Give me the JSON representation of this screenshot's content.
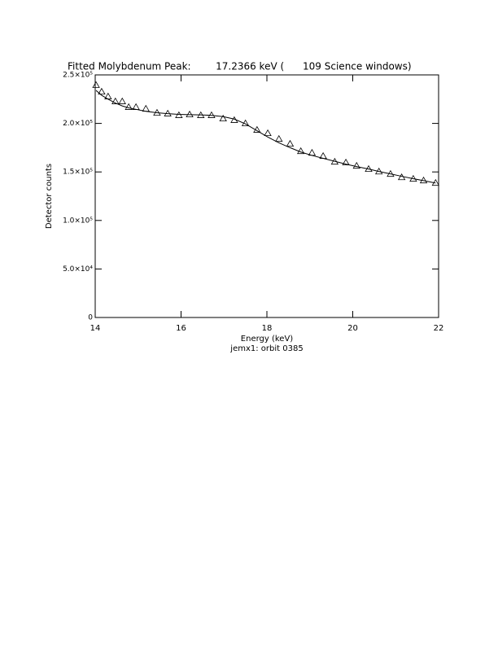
{
  "chart_data": {
    "type": "scatter",
    "title": "Fitted Molybdenum Peak:        17.2366 keV (      109 Science windows)",
    "xlabel": "Energy (keV)",
    "subtitle": "jemx1: orbit 0385",
    "ylabel": "Detector counts",
    "xlim": [
      14,
      22
    ],
    "xticks": [
      14,
      16,
      18,
      20,
      22
    ],
    "ylim": [
      0,
      250000
    ],
    "yticks": [
      0,
      {
        "value": 50000,
        "label": "5.0×10⁴"
      },
      {
        "value": 100000,
        "label": "1.0×10⁵"
      },
      {
        "value": 150000,
        "label": "1.5×10⁵"
      },
      {
        "value": 200000,
        "label": "2.0×10⁵"
      },
      {
        "value": 250000,
        "label": "2.5×10⁵"
      }
    ],
    "grid": false,
    "x": [
      14.02,
      14.15,
      14.3,
      14.47,
      14.63,
      14.78,
      14.95,
      15.18,
      15.44,
      15.69,
      15.95,
      16.2,
      16.46,
      16.71,
      16.98,
      17.24,
      17.5,
      17.77,
      18.02,
      18.28,
      18.54,
      18.79,
      19.05,
      19.31,
      19.58,
      19.84,
      20.09,
      20.37,
      20.61,
      20.88,
      21.14,
      21.41,
      21.65,
      21.93
    ],
    "series": [
      {
        "style": "triangle",
        "color": "#000000",
        "values": [
          239500,
          232700,
          227700,
          222700,
          222700,
          216800,
          216800,
          215100,
          210900,
          210100,
          208400,
          209200,
          208400,
          208400,
          205000,
          203400,
          200000,
          193300,
          189900,
          184000,
          179000,
          171400,
          169700,
          166400,
          160500,
          159700,
          156300,
          153000,
          150400,
          147900,
          144500,
          142900,
          141200,
          138700
        ]
      },
      {
        "style": "line",
        "color": "#000000",
        "values": [
          234000,
          229000,
          225000,
          221000,
          218000,
          216000,
          214500,
          212500,
          211000,
          210000,
          209300,
          209000,
          208800,
          208300,
          207000,
          204500,
          199500,
          192500,
          186000,
          180000,
          175000,
          170500,
          167000,
          164000,
          161000,
          158000,
          155500,
          153000,
          150500,
          148000,
          145500,
          143000,
          141000,
          138500
        ]
      }
    ]
  }
}
